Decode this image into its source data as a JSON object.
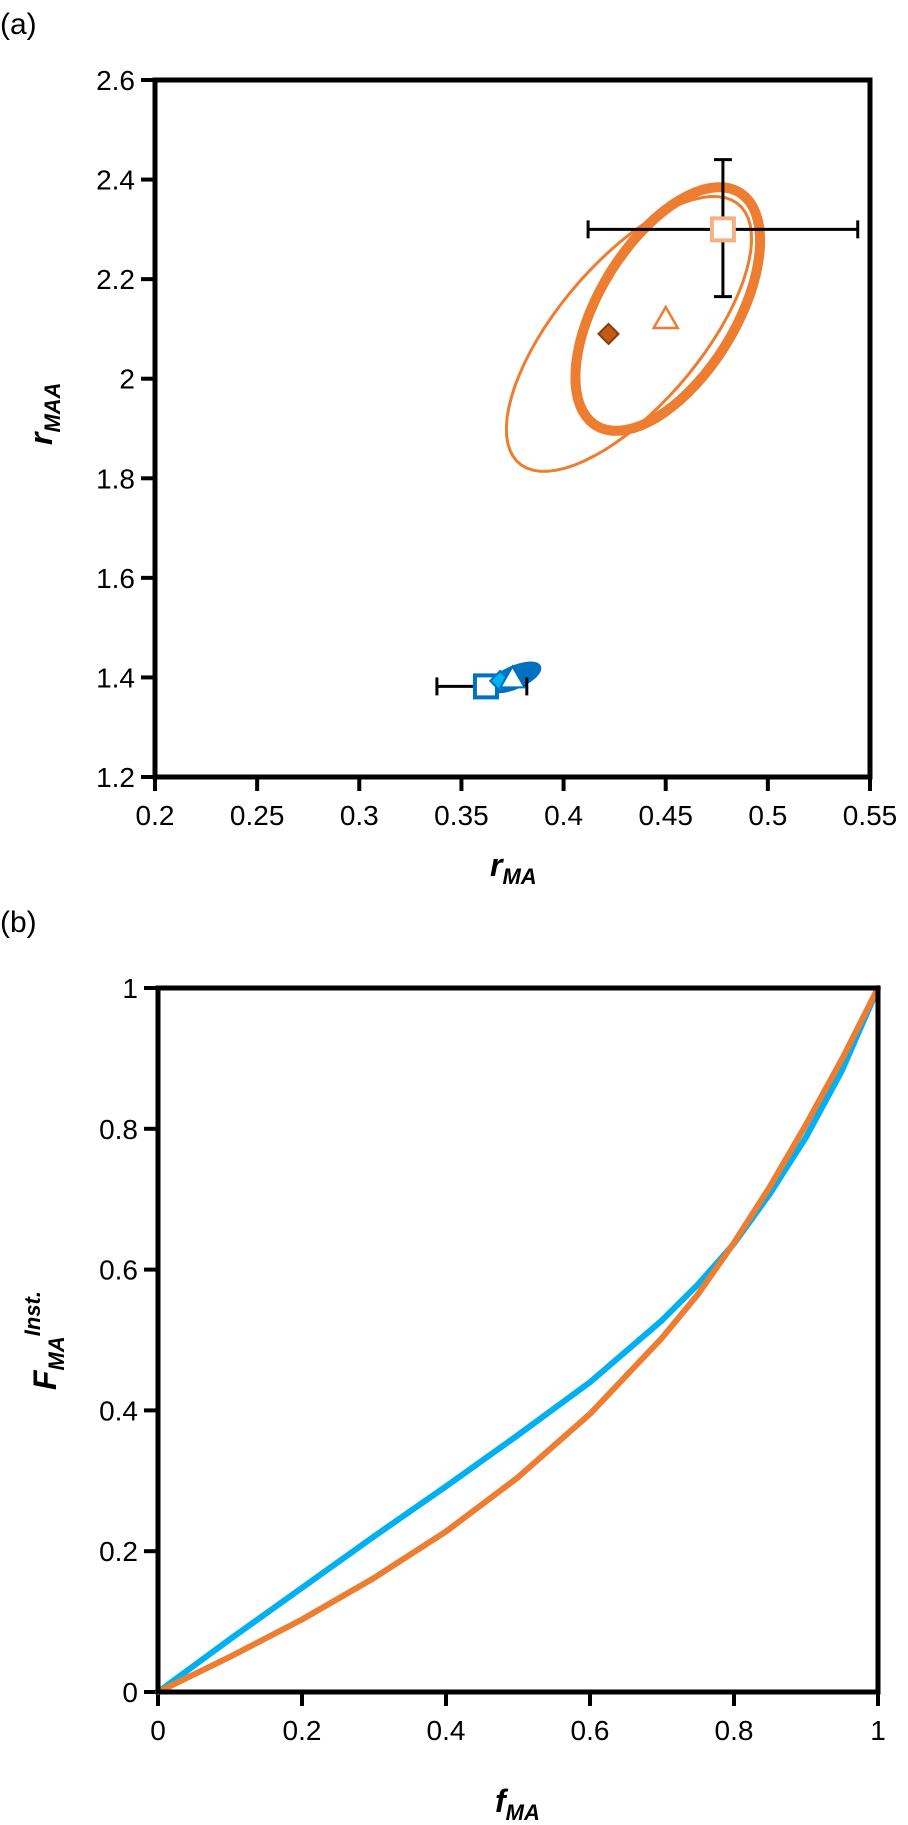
{
  "colors": {
    "orange": "#ED7D31",
    "orange_dark": "#C55A11",
    "orange_light": "#F4B183",
    "blue": "#00B0F0",
    "blue_dark": "#0070C0",
    "axis": "#000000"
  },
  "chart_data": [
    {
      "panel_label": "(a)",
      "type": "scatter",
      "xlabel": {
        "main": "r",
        "sub": "MA"
      },
      "ylabel": {
        "main": "r",
        "sub": "MAA"
      },
      "xlim": [
        0.2,
        0.55
      ],
      "ylim": [
        1.2,
        2.6
      ],
      "xticks": [
        "0.2",
        "0.25",
        "0.3",
        "0.35",
        "0.4",
        "0.45",
        "0.5",
        "0.55"
      ],
      "yticks": [
        "1.2",
        "1.4",
        "1.6",
        "1.8",
        "2",
        "2.2",
        "2.4",
        "2.6"
      ],
      "grid": false,
      "series": [
        {
          "group": "orange",
          "points": [
            {
              "marker": "square",
              "x": 0.478,
              "y": 2.3,
              "xerr": [
                0.412,
                0.544
              ],
              "yerr": [
                2.165,
                2.44
              ]
            },
            {
              "marker": "diamond",
              "x": 0.422,
              "y": 2.09
            },
            {
              "marker": "triangle",
              "x": 0.45,
              "y": 2.12
            }
          ],
          "ellipses": [
            {
              "cx": 0.451,
              "cy": 2.14,
              "rx_dir": [
                0.038,
                0.225
              ],
              "ry_dir": [
                -0.0245,
                0.0965
              ],
              "weight": "thick"
            },
            {
              "cx": 0.432,
              "cy": 2.09,
              "rx_dir": [
                0.055,
                0.255
              ],
              "ry_dir": [
                -0.024,
                0.106
              ],
              "weight": "thin"
            }
          ]
        },
        {
          "group": "blue",
          "points": [
            {
              "marker": "square",
              "x": 0.362,
              "y": 1.382,
              "xerr": [
                0.338,
                0.382
              ]
            },
            {
              "marker": "diamond",
              "x": 0.369,
              "y": 1.393
            },
            {
              "marker": "triangle",
              "x": 0.375,
              "y": 1.398
            }
          ],
          "ellipses": [
            {
              "cx": 0.376,
              "cy": 1.4,
              "rx_dir": [
                0.0115,
                0.024
              ],
              "ry_dir": [
                -0.0038,
                0.0142
              ],
              "weight": "thick"
            }
          ]
        }
      ]
    },
    {
      "panel_label": "(b)",
      "type": "line",
      "xlabel": {
        "main": "f",
        "sub": "MA"
      },
      "ylabel": {
        "main": "F",
        "sub": "MA",
        "sup": "Inst."
      },
      "xlim": [
        0,
        1
      ],
      "ylim": [
        0,
        1
      ],
      "xticks": [
        "0",
        "0.2",
        "0.4",
        "0.6",
        "0.8",
        "1"
      ],
      "yticks": [
        "0",
        "0.2",
        "0.4",
        "0.6",
        "0.8",
        "1"
      ],
      "grid": false,
      "series": [
        {
          "group": "blue",
          "x": [
            0,
            0.1,
            0.2,
            0.3,
            0.4,
            0.5,
            0.6,
            0.7,
            0.75,
            0.8,
            0.85,
            0.9,
            0.95,
            1.0
          ],
          "y": [
            0,
            0.075,
            0.148,
            0.221,
            0.292,
            0.365,
            0.44,
            0.528,
            0.579,
            0.637,
            0.708,
            0.788,
            0.883,
            1.0
          ]
        },
        {
          "group": "orange",
          "x": [
            0,
            0.1,
            0.2,
            0.3,
            0.4,
            0.5,
            0.6,
            0.7,
            0.75,
            0.8,
            0.85,
            0.9,
            0.95,
            1.0
          ],
          "y": [
            0,
            0.05,
            0.103,
            0.162,
            0.228,
            0.305,
            0.395,
            0.503,
            0.565,
            0.638,
            0.718,
            0.806,
            0.899,
            1.0
          ]
        }
      ]
    }
  ]
}
